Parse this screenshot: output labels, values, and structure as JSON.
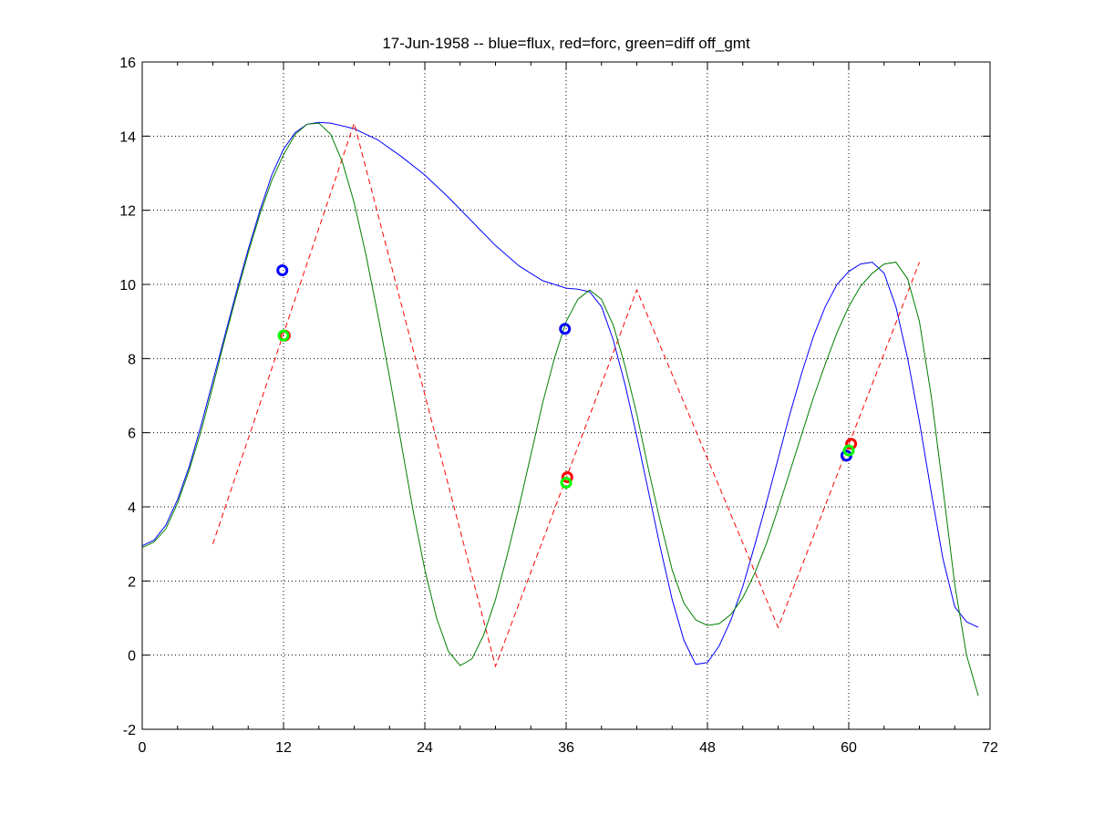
{
  "chart_data": {
    "type": "line",
    "title": "17-Jun-1958 -- blue=flux, red=forc, green=diff off_gmt",
    "xlabel": "",
    "ylabel": "",
    "xlim": [
      0,
      72
    ],
    "ylim": [
      -2,
      16
    ],
    "xticks": [
      0,
      12,
      24,
      36,
      48,
      60,
      72
    ],
    "yticks": [
      -2,
      0,
      2,
      4,
      6,
      8,
      10,
      12,
      14,
      16
    ],
    "x_minor_ticks": [
      3,
      6,
      9,
      15,
      18,
      21,
      27,
      30,
      33,
      39,
      42,
      45,
      51,
      54,
      57,
      63,
      66,
      69
    ],
    "grid": true,
    "series": [
      {
        "name": "flux",
        "color": "#0000ff",
        "style": "solid",
        "points": [
          [
            0,
            2.95
          ],
          [
            1,
            3.1
          ],
          [
            2,
            3.5
          ],
          [
            3,
            4.2
          ],
          [
            4,
            5.1
          ],
          [
            5,
            6.2
          ],
          [
            6,
            7.4
          ],
          [
            7,
            8.6
          ],
          [
            8,
            9.8
          ],
          [
            9,
            10.95
          ],
          [
            10,
            12.0
          ],
          [
            11,
            12.95
          ],
          [
            12,
            13.65
          ],
          [
            13,
            14.1
          ],
          [
            14,
            14.32
          ],
          [
            15,
            14.37
          ],
          [
            16,
            14.35
          ],
          [
            18,
            14.2
          ],
          [
            20,
            13.9
          ],
          [
            22,
            13.45
          ],
          [
            24,
            12.95
          ],
          [
            26,
            12.35
          ],
          [
            28,
            11.7
          ],
          [
            30,
            11.05
          ],
          [
            32,
            10.5
          ],
          [
            34,
            10.1
          ],
          [
            36,
            9.9
          ],
          [
            37,
            9.87
          ],
          [
            38,
            9.8
          ],
          [
            39,
            9.4
          ],
          [
            40,
            8.5
          ],
          [
            41,
            7.3
          ],
          [
            42,
            5.9
          ],
          [
            43,
            4.4
          ],
          [
            44,
            2.9
          ],
          [
            45,
            1.5
          ],
          [
            46,
            0.4
          ],
          [
            47,
            -0.25
          ],
          [
            48,
            -0.2
          ],
          [
            49,
            0.25
          ],
          [
            50,
            0.95
          ],
          [
            51,
            1.85
          ],
          [
            52,
            2.95
          ],
          [
            53,
            4.1
          ],
          [
            54,
            5.3
          ],
          [
            55,
            6.5
          ],
          [
            56,
            7.6
          ],
          [
            57,
            8.6
          ],
          [
            58,
            9.4
          ],
          [
            59,
            10.0
          ],
          [
            60,
            10.35
          ],
          [
            61,
            10.55
          ],
          [
            62,
            10.6
          ],
          [
            63,
            10.3
          ],
          [
            64,
            9.4
          ],
          [
            65,
            8.0
          ],
          [
            66,
            6.3
          ],
          [
            67,
            4.4
          ],
          [
            68,
            2.6
          ],
          [
            69,
            1.3
          ],
          [
            70,
            0.9
          ],
          [
            71,
            0.75
          ]
        ]
      },
      {
        "name": "forc",
        "color": "#ff0000",
        "style": "dashed",
        "points": [
          [
            6,
            3.0
          ],
          [
            18,
            14.35
          ],
          [
            30,
            -0.3
          ],
          [
            42,
            9.85
          ],
          [
            54,
            0.75
          ],
          [
            66,
            10.6
          ]
        ]
      },
      {
        "name": "diff",
        "color": "#007f00",
        "style": "solid",
        "points": [
          [
            0,
            2.9
          ],
          [
            1,
            3.05
          ],
          [
            2,
            3.4
          ],
          [
            3,
            4.1
          ],
          [
            4,
            5.0
          ],
          [
            5,
            6.05
          ],
          [
            6,
            7.25
          ],
          [
            7,
            8.5
          ],
          [
            8,
            9.7
          ],
          [
            9,
            10.85
          ],
          [
            10,
            11.9
          ],
          [
            11,
            12.8
          ],
          [
            12,
            13.5
          ],
          [
            13,
            14.05
          ],
          [
            14,
            14.32
          ],
          [
            15,
            14.35
          ],
          [
            16,
            14.05
          ],
          [
            17,
            13.3
          ],
          [
            18,
            12.2
          ],
          [
            19,
            10.8
          ],
          [
            20,
            9.2
          ],
          [
            21,
            7.5
          ],
          [
            22,
            5.7
          ],
          [
            23,
            3.9
          ],
          [
            24,
            2.3
          ],
          [
            25,
            1.0
          ],
          [
            26,
            0.1
          ],
          [
            27,
            -0.28
          ],
          [
            28,
            -0.1
          ],
          [
            29,
            0.55
          ],
          [
            30,
            1.5
          ],
          [
            31,
            2.7
          ],
          [
            32,
            4.0
          ],
          [
            33,
            5.4
          ],
          [
            34,
            6.8
          ],
          [
            35,
            8.0
          ],
          [
            36,
            9.0
          ],
          [
            37,
            9.6
          ],
          [
            38,
            9.85
          ],
          [
            39,
            9.6
          ],
          [
            40,
            8.9
          ],
          [
            41,
            7.8
          ],
          [
            42,
            6.5
          ],
          [
            43,
            5.0
          ],
          [
            44,
            3.6
          ],
          [
            45,
            2.3
          ],
          [
            46,
            1.4
          ],
          [
            47,
            0.95
          ],
          [
            48,
            0.8
          ],
          [
            49,
            0.85
          ],
          [
            50,
            1.1
          ],
          [
            51,
            1.55
          ],
          [
            52,
            2.2
          ],
          [
            53,
            3.0
          ],
          [
            54,
            3.95
          ],
          [
            55,
            4.95
          ],
          [
            56,
            5.95
          ],
          [
            57,
            6.95
          ],
          [
            58,
            7.85
          ],
          [
            59,
            8.7
          ],
          [
            60,
            9.4
          ],
          [
            61,
            9.95
          ],
          [
            62,
            10.3
          ],
          [
            63,
            10.55
          ],
          [
            64,
            10.6
          ],
          [
            65,
            10.15
          ],
          [
            66,
            9.0
          ],
          [
            67,
            7.0
          ],
          [
            68,
            4.5
          ],
          [
            69,
            1.9
          ],
          [
            70,
            0.0
          ],
          [
            71,
            -1.1
          ]
        ]
      }
    ],
    "markers": [
      {
        "series": "flux",
        "color": "#0000ff",
        "x": 11.9,
        "y": 10.38
      },
      {
        "series": "forc",
        "color": "#ff0000",
        "x": 12.1,
        "y": 8.62
      },
      {
        "series": "diff",
        "color": "#00ff00",
        "x": 12.0,
        "y": 8.62
      },
      {
        "series": "flux",
        "color": "#0000ff",
        "x": 35.9,
        "y": 8.8
      },
      {
        "series": "forc",
        "color": "#ff0000",
        "x": 36.1,
        "y": 4.8
      },
      {
        "series": "diff",
        "color": "#00ff00",
        "x": 36.0,
        "y": 4.65
      },
      {
        "series": "flux",
        "color": "#0000ff",
        "x": 59.8,
        "y": 5.38
      },
      {
        "series": "forc",
        "color": "#ff0000",
        "x": 60.2,
        "y": 5.7
      },
      {
        "series": "diff",
        "color": "#00ff00",
        "x": 60.0,
        "y": 5.52
      }
    ]
  }
}
